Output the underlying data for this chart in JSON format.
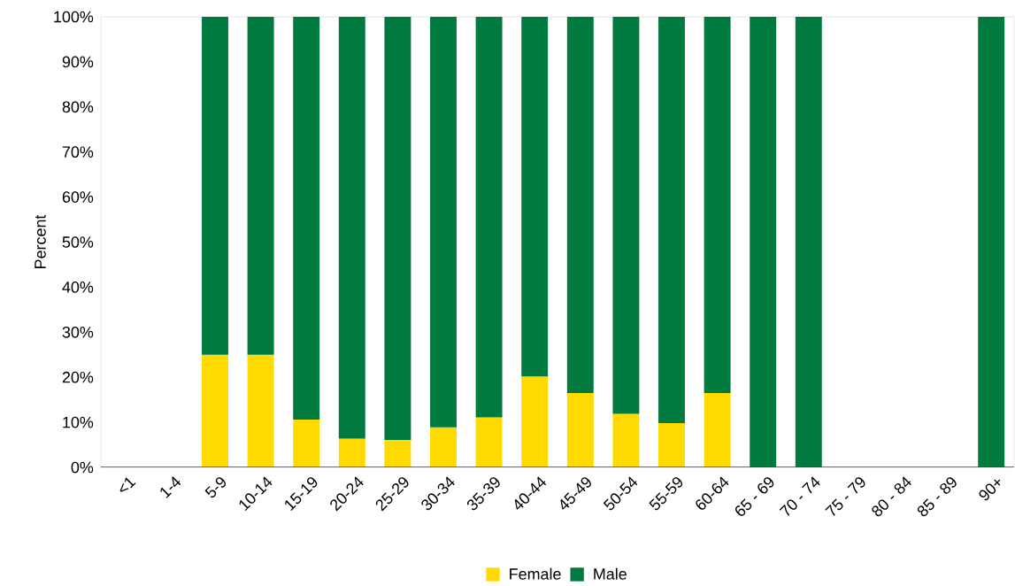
{
  "chart_data": {
    "type": "bar",
    "stacked": true,
    "ylabel": "Percent",
    "categories": [
      "<1",
      "1-4",
      "5-9",
      "10-14",
      "15-19",
      "20-24",
      "25-29",
      "30-34",
      "35-39",
      "40-44",
      "45-49",
      "50-54",
      "55-59",
      "60-64",
      "65 - 69",
      "70 - 74",
      "75 - 79",
      "80 - 84",
      "85 - 89",
      "90+"
    ],
    "series": [
      {
        "name": "Female",
        "color": "#ffda00",
        "values": [
          null,
          null,
          25,
          25,
          10.6,
          6.4,
          6.1,
          8.9,
          11.1,
          20.2,
          16.5,
          11.9,
          9.8,
          16.5,
          0,
          0,
          null,
          null,
          null,
          null
        ]
      },
      {
        "name": "Male",
        "color": "#007a3f",
        "values": [
          null,
          null,
          75,
          75,
          89.4,
          93.6,
          93.9,
          91.1,
          88.9,
          79.8,
          83.5,
          88.1,
          90.2,
          83.5,
          100,
          100,
          null,
          null,
          null,
          100
        ]
      }
    ],
    "ylim": [
      0,
      100
    ],
    "yticks": [
      {
        "value": 0,
        "label": "0%"
      },
      {
        "value": 10,
        "label": "10%"
      },
      {
        "value": 20,
        "label": "20%"
      },
      {
        "value": 30,
        "label": "30%"
      },
      {
        "value": 40,
        "label": "40%"
      },
      {
        "value": 50,
        "label": "50%"
      },
      {
        "value": 60,
        "label": "60%"
      },
      {
        "value": 70,
        "label": "70%"
      },
      {
        "value": 80,
        "label": "80%"
      },
      {
        "value": 90,
        "label": "90%"
      },
      {
        "value": 100,
        "label": "100%"
      }
    ],
    "legend": "bottom",
    "grid": false
  }
}
